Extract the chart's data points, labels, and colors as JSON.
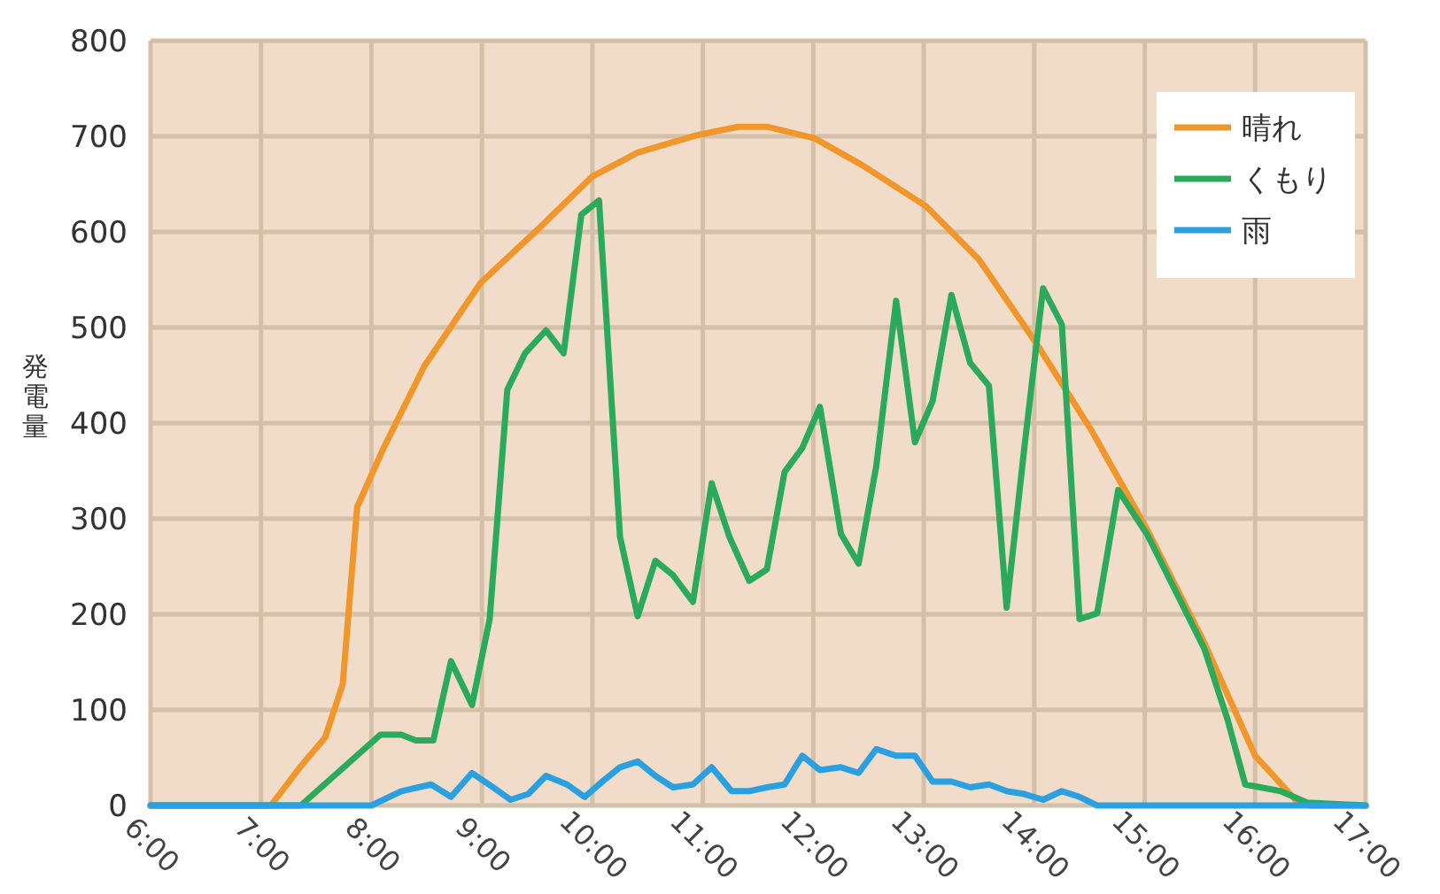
{
  "chart_data": {
    "type": "line",
    "ylabel": "発電量",
    "xlim": [
      6,
      17
    ],
    "ylim": [
      0,
      800
    ],
    "xticks": [
      {
        "value": 6,
        "label": "6:00"
      },
      {
        "value": 7,
        "label": "7:00"
      },
      {
        "value": 8,
        "label": "8:00"
      },
      {
        "value": 9,
        "label": "9:00"
      },
      {
        "value": 10,
        "label": "10:00"
      },
      {
        "value": 11,
        "label": "11:00"
      },
      {
        "value": 12,
        "label": "12:00"
      },
      {
        "value": 13,
        "label": "13:00"
      },
      {
        "value": 14,
        "label": "14:00"
      },
      {
        "value": 15,
        "label": "15:00"
      },
      {
        "value": 16,
        "label": "16:00"
      },
      {
        "value": 17,
        "label": "17:00"
      }
    ],
    "yticks": [
      0,
      100,
      200,
      300,
      400,
      500,
      600,
      700,
      800
    ],
    "grid": true,
    "legend": "top right",
    "marker": "none",
    "line_style": "solid",
    "series": [
      {
        "name": "晴れ",
        "color": "#f0962a",
        "x": [
          6,
          7.09,
          7.36,
          7.58,
          7.74,
          7.87,
          8.11,
          8.48,
          8.99,
          9.5,
          10,
          10.41,
          10.94,
          11.32,
          11.58,
          12.01,
          12.44,
          13.02,
          13.5,
          14.01,
          14.52,
          15.03,
          15.54,
          16,
          16.39,
          16.5,
          17
        ],
        "values": [
          0,
          0,
          41,
          71,
          127,
          312,
          374,
          460,
          547,
          602,
          658,
          683,
          701,
          710,
          710,
          698,
          670,
          627,
          571,
          485,
          392,
          287,
          170,
          52,
          3,
          0,
          0
        ]
      },
      {
        "name": "くもり",
        "color": "#2aaa5a",
        "x": [
          6,
          7.36,
          8.08,
          8.27,
          8.4,
          8.56,
          8.72,
          8.91,
          9.07,
          9.23,
          9.39,
          9.58,
          9.74,
          9.9,
          10.06,
          10.25,
          10.41,
          10.57,
          10.73,
          10.91,
          11.08,
          11.24,
          11.42,
          11.58,
          11.74,
          11.9,
          12.06,
          12.25,
          12.41,
          12.57,
          12.75,
          12.92,
          13.08,
          13.25,
          13.42,
          13.59,
          13.75,
          13.91,
          14.08,
          14.25,
          14.41,
          14.57,
          14.76,
          15.03,
          15.54,
          15.75,
          15.91,
          16.23,
          16.47,
          17
        ],
        "values": [
          0,
          0,
          74,
          74,
          68,
          68,
          151,
          105,
          195,
          435,
          473,
          497,
          473,
          618,
          633,
          281,
          198,
          256,
          241,
          213,
          337,
          281,
          235,
          247,
          349,
          374,
          417,
          284,
          253,
          355,
          528,
          380,
          423,
          534,
          463,
          439,
          207,
          374,
          541,
          503,
          195,
          201,
          330,
          282,
          164,
          90,
          22,
          15,
          3,
          0
        ]
      },
      {
        "name": "雨",
        "color": "#2aa0e0",
        "x": [
          6,
          8,
          8.27,
          8.54,
          8.72,
          8.91,
          9.1,
          9.26,
          9.42,
          9.58,
          9.77,
          9.93,
          10.09,
          10.25,
          10.41,
          10.57,
          10.73,
          10.91,
          11.08,
          11.26,
          11.42,
          11.58,
          11.74,
          11.9,
          12.06,
          12.25,
          12.41,
          12.57,
          12.75,
          12.92,
          13.08,
          13.25,
          13.42,
          13.59,
          13.75,
          13.91,
          14.08,
          14.25,
          14.41,
          14.57,
          17
        ],
        "values": [
          0,
          0,
          15,
          22,
          9,
          34,
          19,
          6,
          12,
          31,
          22,
          9,
          25,
          40,
          46,
          31,
          19,
          22,
          40,
          15,
          15,
          19,
          22,
          52,
          37,
          40,
          34,
          59,
          52,
          52,
          25,
          25,
          19,
          22,
          15,
          12,
          6,
          15,
          9,
          0,
          0
        ]
      }
    ]
  }
}
